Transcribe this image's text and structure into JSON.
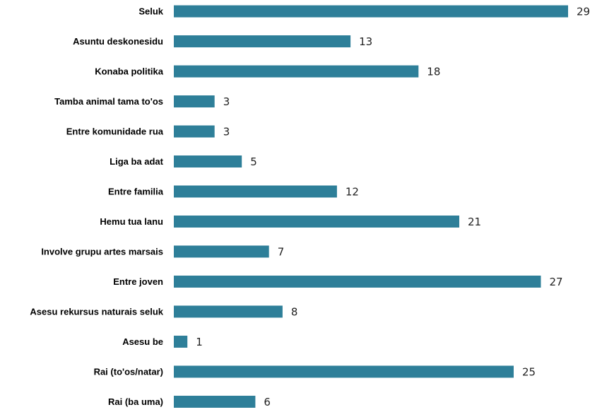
{
  "chart_data": {
    "type": "bar",
    "orientation": "horizontal",
    "categories": [
      "Seluk",
      "Asuntu deskonesidu",
      "Konaba politika",
      "Tamba animal tama to'os",
      "Entre komunidade rua",
      "Liga ba adat",
      "Entre familia",
      "Hemu tua lanu",
      "Involve grupu artes marsais",
      "Entre joven",
      "Asesu rekursus naturais seluk",
      "Asesu be",
      "Rai (to'os/natar)",
      "Rai (ba uma)"
    ],
    "values": [
      29,
      13,
      18,
      3,
      3,
      5,
      12,
      21,
      7,
      27,
      8,
      1,
      25,
      6
    ],
    "title": "",
    "xlabel": "",
    "ylabel": "",
    "xlim": [
      0,
      29
    ],
    "grid": false,
    "legend": "none",
    "bar_color": "#2e7f99",
    "data_labels": true
  }
}
